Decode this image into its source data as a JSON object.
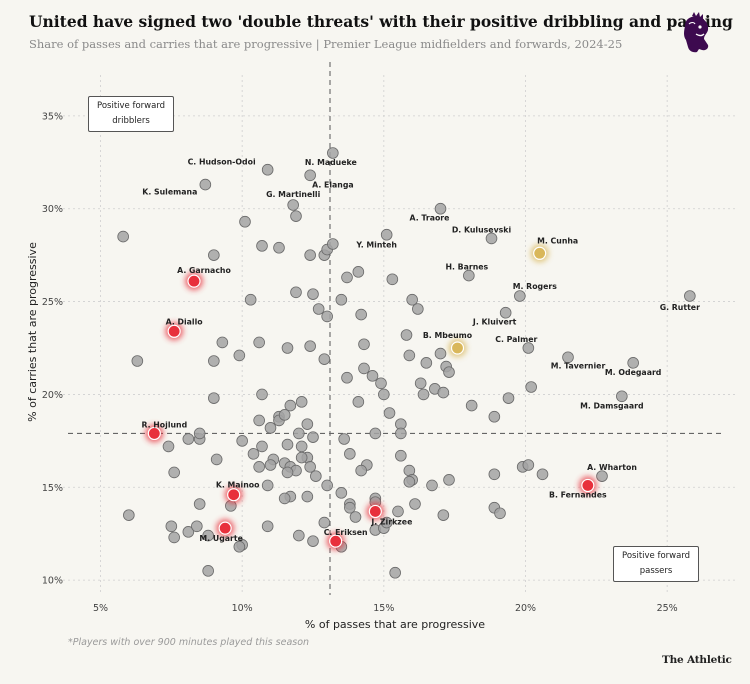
{
  "header": {
    "title": "United have signed two 'double threats' with their positive dribbling and passing",
    "subtitle": "Share of passes and carries that are progressive | Premier League midfielders and forwards, 2024-25"
  },
  "callouts": {
    "dribblers_line1": "Positive forward",
    "dribblers_line2": "dribblers",
    "passers_line1": "Positive forward",
    "passers_line2": "passers"
  },
  "footer": {
    "footnote": "*Players with over 900 minutes played this season",
    "brand": "The Athletic",
    "logo_icon": "premier-league-lion-icon"
  },
  "colors": {
    "background": "#f7f6f1",
    "point": "#a3a3a3",
    "highlight_red": "#e8303c",
    "highlight_gold": "#d9b75a",
    "logo_purple": "#3d0a4f"
  },
  "chart_data": {
    "type": "scatter",
    "xlabel": "% of passes that are progressive",
    "ylabel": "% of carries that are progressive",
    "xlim": [
      3.5,
      27.5
    ],
    "ylim": [
      9.2,
      37.2
    ],
    "xticks": [
      5,
      10,
      15,
      20,
      25
    ],
    "xtick_labels": [
      "5%",
      "10%",
      "15%",
      "20%",
      "25%"
    ],
    "yticks": [
      10,
      15,
      20,
      25,
      30,
      35
    ],
    "ytick_labels": [
      "10%",
      "15%",
      "20%",
      "25%",
      "30%",
      "35%"
    ],
    "grid": true,
    "reference_lines": {
      "x": 13.1,
      "y": 17.9
    },
    "labeled_points": [
      {
        "name": "C. Hudson-Odoi",
        "x": 10.9,
        "y": 32.1,
        "group": "other"
      },
      {
        "name": "N. Madueke",
        "x": 13.2,
        "y": 33.0,
        "group": "other"
      },
      {
        "name": "A. Elanga",
        "x": 12.4,
        "y": 31.8,
        "group": "other"
      },
      {
        "name": "K. Sulemana",
        "x": 8.7,
        "y": 31.3,
        "group": "other"
      },
      {
        "name": "G. Martinelli",
        "x": 11.8,
        "y": 30.2,
        "group": "other"
      },
      {
        "name": "A. Traore",
        "x": 17.0,
        "y": 30.0,
        "group": "other"
      },
      {
        "name": "D. Kulusevski",
        "x": 18.8,
        "y": 28.4,
        "group": "other"
      },
      {
        "name": "Y. Minteh",
        "x": 15.1,
        "y": 28.6,
        "group": "other"
      },
      {
        "name": "M. Cunha",
        "x": 20.5,
        "y": 27.6,
        "group": "gold"
      },
      {
        "name": "A. Garnacho",
        "x": 8.3,
        "y": 26.1,
        "group": "red"
      },
      {
        "name": "H. Barnes",
        "x": 18.0,
        "y": 26.4,
        "group": "other"
      },
      {
        "name": "M. Rogers",
        "x": 19.8,
        "y": 25.3,
        "group": "other"
      },
      {
        "name": "G. Rutter",
        "x": 25.8,
        "y": 25.3,
        "group": "other"
      },
      {
        "name": "J. Kluivert",
        "x": 19.3,
        "y": 24.4,
        "group": "other"
      },
      {
        "name": "A. Diallo",
        "x": 7.6,
        "y": 23.4,
        "group": "red"
      },
      {
        "name": "B. Mbeumo",
        "x": 17.6,
        "y": 22.5,
        "group": "gold"
      },
      {
        "name": "C. Palmer",
        "x": 20.1,
        "y": 22.5,
        "group": "other"
      },
      {
        "name": "M. Tavernier",
        "x": 21.5,
        "y": 22.0,
        "group": "other"
      },
      {
        "name": "M. Odegaard",
        "x": 23.8,
        "y": 21.7,
        "group": "other"
      },
      {
        "name": "M. Damsgaard",
        "x": 23.4,
        "y": 19.9,
        "group": "other"
      },
      {
        "name": "R. Hojlund",
        "x": 6.9,
        "y": 17.9,
        "group": "red"
      },
      {
        "name": "A. Wharton",
        "x": 22.7,
        "y": 15.6,
        "group": "other"
      },
      {
        "name": "B. Fernandes",
        "x": 22.2,
        "y": 15.1,
        "group": "red"
      },
      {
        "name": "K. Mainoo",
        "x": 9.7,
        "y": 14.6,
        "group": "red"
      },
      {
        "name": "J. Zirkzee",
        "x": 14.7,
        "y": 13.7,
        "group": "red"
      },
      {
        "name": "C. Eriksen",
        "x": 13.3,
        "y": 12.1,
        "group": "red"
      },
      {
        "name": "M. Ugarte",
        "x": 9.4,
        "y": 12.8,
        "group": "red"
      }
    ],
    "other_points": [
      [
        5.8,
        28.5
      ],
      [
        9.0,
        27.5
      ],
      [
        10.1,
        29.3
      ],
      [
        10.7,
        28.0
      ],
      [
        11.3,
        27.9
      ],
      [
        12.4,
        27.5
      ],
      [
        12.9,
        27.5
      ],
      [
        13.0,
        27.8
      ],
      [
        13.2,
        28.1
      ],
      [
        11.9,
        29.6
      ],
      [
        13.7,
        26.3
      ],
      [
        14.1,
        26.6
      ],
      [
        15.3,
        26.2
      ],
      [
        11.9,
        25.5
      ],
      [
        12.5,
        25.4
      ],
      [
        13.5,
        25.1
      ],
      [
        16.0,
        25.1
      ],
      [
        16.2,
        24.6
      ],
      [
        12.7,
        24.6
      ],
      [
        13.0,
        24.2
      ],
      [
        14.2,
        24.3
      ],
      [
        10.3,
        25.1
      ],
      [
        6.3,
        21.8
      ],
      [
        9.0,
        21.8
      ],
      [
        9.3,
        22.8
      ],
      [
        9.9,
        22.1
      ],
      [
        10.6,
        22.8
      ],
      [
        11.6,
        22.5
      ],
      [
        12.4,
        22.6
      ],
      [
        12.9,
        21.9
      ],
      [
        13.7,
        20.9
      ],
      [
        14.3,
        22.7
      ],
      [
        15.8,
        23.2
      ],
      [
        15.9,
        22.1
      ],
      [
        16.5,
        21.7
      ],
      [
        17.0,
        22.2
      ],
      [
        17.2,
        21.5
      ],
      [
        16.3,
        20.6
      ],
      [
        16.4,
        20.0
      ],
      [
        16.8,
        20.3
      ],
      [
        17.1,
        20.1
      ],
      [
        17.3,
        21.2
      ],
      [
        14.3,
        21.4
      ],
      [
        14.6,
        21.0
      ],
      [
        14.9,
        20.6
      ],
      [
        15.0,
        20.0
      ],
      [
        15.2,
        19.0
      ],
      [
        15.6,
        18.4
      ],
      [
        15.6,
        17.9
      ],
      [
        14.1,
        19.6
      ],
      [
        18.1,
        19.4
      ],
      [
        18.9,
        18.8
      ],
      [
        19.4,
        19.8
      ],
      [
        20.2,
        20.4
      ],
      [
        9.0,
        19.8
      ],
      [
        10.7,
        20.0
      ],
      [
        11.3,
        18.8
      ],
      [
        11.7,
        19.4
      ],
      [
        12.1,
        19.6
      ],
      [
        10.6,
        18.6
      ],
      [
        11.0,
        18.2
      ],
      [
        11.3,
        18.6
      ],
      [
        11.5,
        18.9
      ],
      [
        12.3,
        18.4
      ],
      [
        12.0,
        17.9
      ],
      [
        11.6,
        17.3
      ],
      [
        10.7,
        17.2
      ],
      [
        10.0,
        17.5
      ],
      [
        9.1,
        16.5
      ],
      [
        8.5,
        17.6
      ],
      [
        8.1,
        17.6
      ],
      [
        8.5,
        17.9
      ],
      [
        7.4,
        17.2
      ],
      [
        7.6,
        15.8
      ],
      [
        10.4,
        16.8
      ],
      [
        10.6,
        16.1
      ],
      [
        11.1,
        16.5
      ],
      [
        11.5,
        16.3
      ],
      [
        11.7,
        16.1
      ],
      [
        11.9,
        15.9
      ],
      [
        12.1,
        17.2
      ],
      [
        12.3,
        16.6
      ],
      [
        12.4,
        16.1
      ],
      [
        12.1,
        16.6
      ],
      [
        11.0,
        16.2
      ],
      [
        11.6,
        15.8
      ],
      [
        12.5,
        17.7
      ],
      [
        13.6,
        17.6
      ],
      [
        13.8,
        16.8
      ],
      [
        14.4,
        16.2
      ],
      [
        14.2,
        15.9
      ],
      [
        14.7,
        17.9
      ],
      [
        15.6,
        16.7
      ],
      [
        15.9,
        15.9
      ],
      [
        16.0,
        15.4
      ],
      [
        15.9,
        15.3
      ],
      [
        16.7,
        15.1
      ],
      [
        17.3,
        15.4
      ],
      [
        18.9,
        15.7
      ],
      [
        19.9,
        16.1
      ],
      [
        20.1,
        16.2
      ],
      [
        20.6,
        15.7
      ],
      [
        10.9,
        15.1
      ],
      [
        11.7,
        14.5
      ],
      [
        12.3,
        14.5
      ],
      [
        12.6,
        15.6
      ],
      [
        13.0,
        15.1
      ],
      [
        13.5,
        14.7
      ],
      [
        13.8,
        14.1
      ],
      [
        14.7,
        14.4
      ],
      [
        14.7,
        14.2
      ],
      [
        15.5,
        13.7
      ],
      [
        16.1,
        14.1
      ],
      [
        17.1,
        13.5
      ],
      [
        18.9,
        13.9
      ],
      [
        19.1,
        13.6
      ],
      [
        6.0,
        13.5
      ],
      [
        7.5,
        12.9
      ],
      [
        7.6,
        12.3
      ],
      [
        8.1,
        12.6
      ],
      [
        8.4,
        12.9
      ],
      [
        8.5,
        14.1
      ],
      [
        8.8,
        12.4
      ],
      [
        9.6,
        14.0
      ],
      [
        10.0,
        11.9
      ],
      [
        9.9,
        11.8
      ],
      [
        10.9,
        12.9
      ],
      [
        11.5,
        14.4
      ],
      [
        12.0,
        12.4
      ],
      [
        12.5,
        12.1
      ],
      [
        12.9,
        13.1
      ],
      [
        13.5,
        11.8
      ],
      [
        13.8,
        13.9
      ],
      [
        14.0,
        13.4
      ],
      [
        14.7,
        12.7
      ],
      [
        15.0,
        12.8
      ],
      [
        15.1,
        13.1
      ],
      [
        15.4,
        10.4
      ],
      [
        8.8,
        10.5
      ]
    ]
  }
}
